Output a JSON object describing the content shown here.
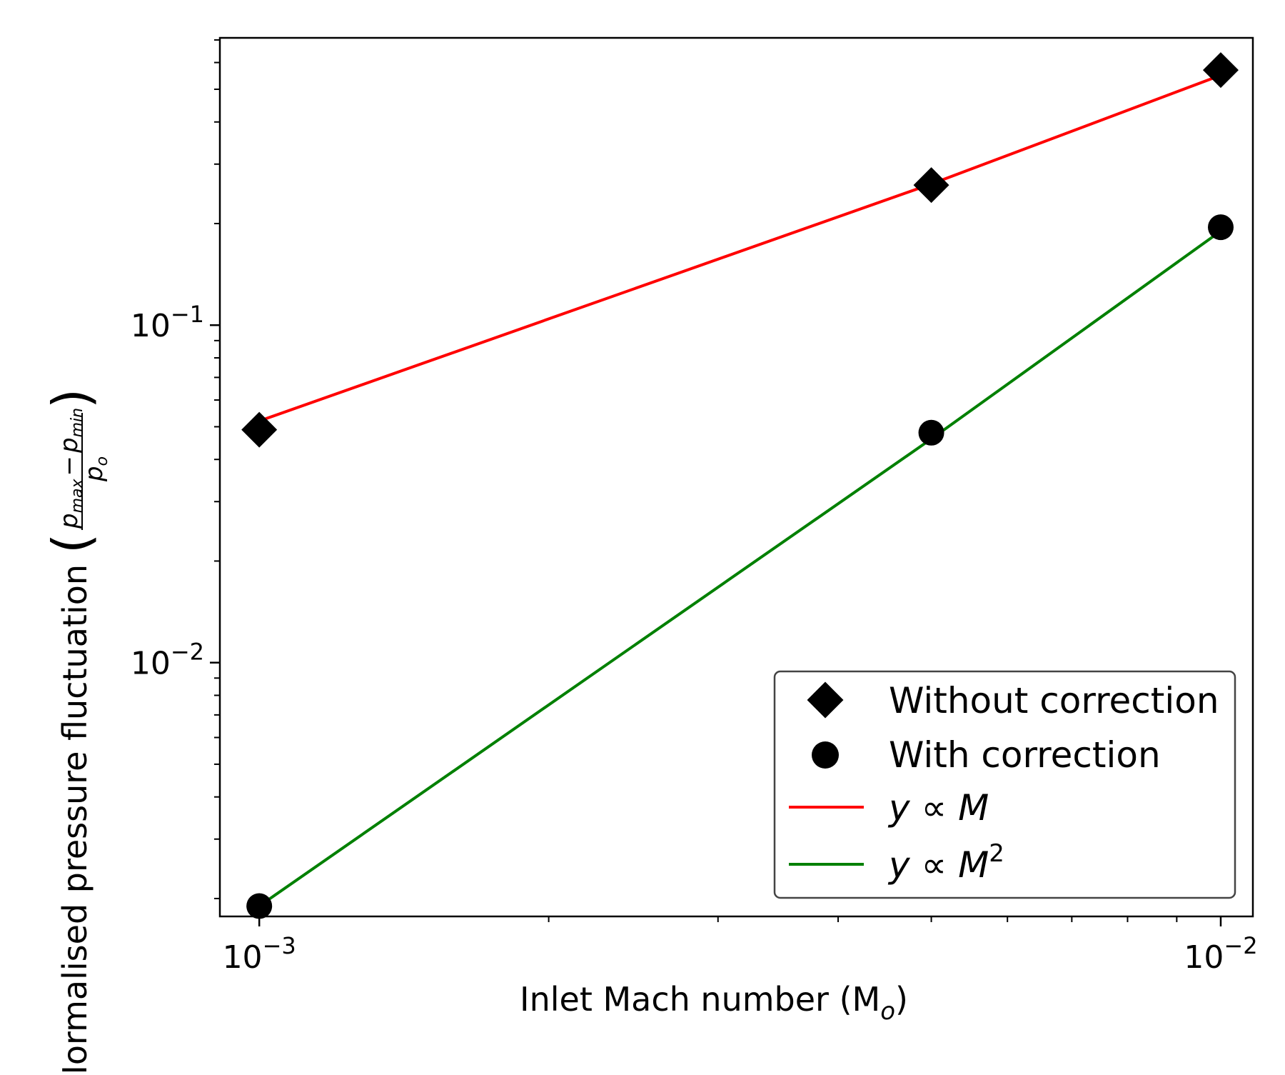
{
  "chart_data": {
    "type": "scatter",
    "xlabel": "Inlet Mach number (M",
    "xlabel_sub": "o",
    "xlabel_close": ")",
    "ylabel": "Normalised pressure fluctuation",
    "ylabel_frac": {
      "num_left": "p",
      "num_left_sub": "max",
      "minus": "−",
      "num_right": "p",
      "num_right_sub": "min",
      "den": "p",
      "den_sub": "o"
    },
    "x_scale": "log",
    "y_scale": "log",
    "xlim": [
      0.00091,
      0.0108
    ],
    "ylim": [
      0.00177,
      0.71
    ],
    "grid": false,
    "x_ticks": [
      {
        "value": 0.001,
        "base": "10",
        "exp": "−3"
      },
      {
        "value": 0.01,
        "base": "10",
        "exp": "−2"
      }
    ],
    "y_ticks": [
      {
        "value": 0.01,
        "base": "10",
        "exp": "−2"
      },
      {
        "value": 0.1,
        "base": "10",
        "exp": "−1"
      }
    ],
    "series": [
      {
        "name": "Without correction",
        "kind": "marker",
        "marker": "diamond",
        "color": "#000000",
        "x": [
          0.001,
          0.005,
          0.01
        ],
        "y": [
          0.049,
          0.26,
          0.57
        ]
      },
      {
        "name": "With correction",
        "kind": "marker",
        "marker": "circle",
        "color": "#000000",
        "x": [
          0.001,
          0.005,
          0.01
        ],
        "y": [
          0.0019,
          0.048,
          0.195
        ]
      },
      {
        "name": "y ∝ M",
        "kind": "line",
        "color": "#ff0000",
        "x": [
          0.001,
          0.005,
          0.01
        ],
        "y": [
          0.052,
          0.262,
          0.55
        ]
      },
      {
        "name": "y ∝ M²",
        "kind": "line",
        "color": "#008000",
        "x": [
          0.001,
          0.005,
          0.01
        ],
        "y": [
          0.0019,
          0.046,
          0.19
        ]
      }
    ],
    "legend": {
      "position": "lower-right",
      "entries": [
        {
          "prefix": "Without correction",
          "sup": ""
        },
        {
          "prefix": "With correction",
          "sup": ""
        },
        {
          "prefix": "y ∝ M",
          "sup": ""
        },
        {
          "prefix": "y ∝ M",
          "sup": "2"
        }
      ]
    }
  }
}
